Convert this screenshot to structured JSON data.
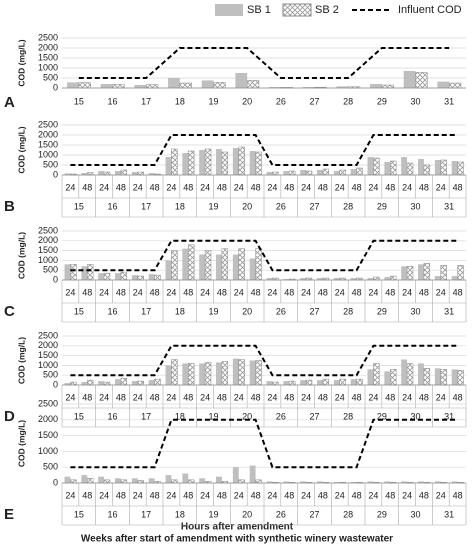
{
  "chart_data": [
    {
      "type": "bar",
      "label": "A",
      "y_label": "COD (mg/L)",
      "categories": [
        "15",
        "16",
        "17",
        "18",
        "19",
        "20",
        "26",
        "27",
        "28",
        "29",
        "30",
        "31"
      ],
      "series": [
        {
          "name": "SB 1",
          "color": "#bfbfbf",
          "hatch": false,
          "values": [
            280,
            200,
            150,
            500,
            380,
            750,
            50,
            50,
            80,
            200,
            850,
            320
          ]
        },
        {
          "name": "SB 2",
          "color": "#bfbfbf",
          "hatch": true,
          "values": [
            270,
            180,
            170,
            250,
            280,
            380,
            30,
            40,
            60,
            150,
            780,
            250
          ]
        },
        {
          "name": "Influent COD",
          "type": "line",
          "dashed": true,
          "color": "#000000",
          "values": [
            500,
            500,
            500,
            2000,
            2000,
            2000,
            500,
            500,
            500,
            2000,
            2000,
            2000
          ]
        }
      ],
      "ylim": [
        0,
        2500
      ],
      "yticks": [
        0,
        500,
        1000,
        1500,
        2000,
        2500
      ],
      "grid": true
    },
    {
      "type": "bar",
      "label": "B",
      "y_label": "COD (mg/L)",
      "categories": [
        "24",
        "48",
        "24",
        "48",
        "24",
        "48",
        "24",
        "48",
        "24",
        "48",
        "24",
        "48",
        "24",
        "48",
        "24",
        "48",
        "24",
        "48",
        "24",
        "48",
        "24",
        "48",
        "24",
        "48"
      ],
      "groups": [
        "15",
        "16",
        "17",
        "18",
        "19",
        "20",
        "26",
        "27",
        "28",
        "29",
        "30",
        "31"
      ],
      "series": [
        {
          "color": "#bfbfbf",
          "hatch": false,
          "values": [
            80,
            100,
            200,
            200,
            150,
            100,
            900,
            1100,
            1250,
            1300,
            1350,
            1200,
            150,
            200,
            250,
            250,
            200,
            300,
            900,
            650,
            900,
            800,
            750,
            700
          ]
        },
        {
          "color": "#bfbfbf",
          "hatch": true,
          "values": [
            50,
            120,
            150,
            250,
            150,
            50,
            1300,
            1200,
            1300,
            1150,
            1400,
            1150,
            150,
            200,
            200,
            300,
            250,
            350,
            850,
            700,
            600,
            500,
            750,
            650
          ]
        },
        {
          "type": "line",
          "dashed": true,
          "color": "#000000",
          "values": [
            500,
            500,
            500,
            500,
            500,
            500,
            2000,
            2000,
            2000,
            2000,
            2000,
            2000,
            500,
            500,
            500,
            500,
            500,
            500,
            2000,
            2000,
            2000,
            2000,
            2000,
            2000
          ]
        }
      ],
      "ylim": [
        0,
        2500
      ],
      "yticks": [
        0,
        500,
        1000,
        1500,
        2000,
        2500
      ],
      "grid": true
    },
    {
      "type": "bar",
      "label": "C",
      "y_label": "COD (mg/L)",
      "categories": [
        "24",
        "48",
        "24",
        "48",
        "24",
        "48",
        "24",
        "48",
        "24",
        "48",
        "24",
        "48",
        "24",
        "48",
        "24",
        "48",
        "24",
        "48",
        "24",
        "48",
        "24",
        "48",
        "24",
        "48"
      ],
      "groups": [
        "15",
        "16",
        "17",
        "18",
        "19",
        "20",
        "26",
        "27",
        "28",
        "29",
        "30",
        "31"
      ],
      "series": [
        {
          "color": "#bfbfbf",
          "hatch": false,
          "values": [
            800,
            700,
            350,
            350,
            250,
            300,
            1000,
            1600,
            1300,
            1300,
            1300,
            1100,
            100,
            50,
            100,
            100,
            100,
            100,
            100,
            150,
            700,
            800,
            200,
            200
          ]
        },
        {
          "color": "#bfbfbf",
          "hatch": true,
          "values": [
            800,
            800,
            350,
            400,
            200,
            250,
            1500,
            1800,
            1500,
            1600,
            1600,
            1600,
            100,
            50,
            100,
            100,
            100,
            100,
            150,
            200,
            700,
            850,
            750,
            750
          ]
        },
        {
          "type": "line",
          "dashed": true,
          "color": "#000000",
          "values": [
            500,
            500,
            500,
            500,
            500,
            500,
            2000,
            2000,
            2000,
            2000,
            2000,
            2000,
            500,
            500,
            500,
            500,
            500,
            500,
            2000,
            2000,
            2000,
            2000,
            2000,
            2000
          ]
        }
      ],
      "ylim": [
        0,
        2500
      ],
      "yticks": [
        0,
        500,
        1000,
        1500,
        2000,
        2500
      ],
      "grid": true
    },
    {
      "type": "bar",
      "label": "D",
      "y_label": "COD (mg/L)",
      "categories": [
        "24",
        "48",
        "24",
        "48",
        "24",
        "48",
        "24",
        "48",
        "24",
        "48",
        "24",
        "48",
        "24",
        "48",
        "24",
        "48",
        "24",
        "48",
        "24",
        "48",
        "24",
        "48",
        "24",
        "48"
      ],
      "groups": [
        "15",
        "16",
        "17",
        "18",
        "19",
        "20",
        "26",
        "27",
        "28",
        "29",
        "30",
        "31"
      ],
      "series": [
        {
          "color": "#bfbfbf",
          "hatch": false,
          "values": [
            100,
            150,
            200,
            300,
            200,
            250,
            1000,
            1100,
            1100,
            1150,
            1350,
            1250,
            200,
            200,
            250,
            250,
            250,
            300,
            800,
            700,
            1300,
            1100,
            850,
            800
          ]
        },
        {
          "color": "#bfbfbf",
          "hatch": true,
          "values": [
            150,
            250,
            150,
            350,
            200,
            300,
            1300,
            1100,
            1150,
            1200,
            1300,
            1250,
            150,
            200,
            250,
            300,
            300,
            300,
            1100,
            800,
            1100,
            850,
            800,
            750
          ]
        },
        {
          "type": "line",
          "dashed": true,
          "color": "#000000",
          "values": [
            500,
            500,
            500,
            500,
            500,
            500,
            2000,
            2000,
            2000,
            2000,
            2000,
            2000,
            500,
            500,
            500,
            500,
            500,
            500,
            2000,
            2000,
            2000,
            2000,
            2000,
            2000
          ]
        }
      ],
      "ylim": [
        0,
        2500
      ],
      "yticks": [
        0,
        500,
        1000,
        1500,
        2000,
        2500
      ],
      "grid": true
    },
    {
      "type": "bar",
      "label": "E",
      "y_label": "COD (mg/L)",
      "categories": [
        "24",
        "48",
        "24",
        "48",
        "24",
        "48",
        "24",
        "48",
        "24",
        "48",
        "24",
        "48",
        "24",
        "48",
        "24",
        "48",
        "24",
        "48",
        "24",
        "48",
        "24",
        "48",
        "24",
        "48"
      ],
      "groups": [
        "15",
        "16",
        "17",
        "18",
        "19",
        "20",
        "26",
        "27",
        "28",
        "29",
        "30",
        "31"
      ],
      "series": [
        {
          "color": "#bfbfbf",
          "hatch": false,
          "values": [
            200,
            250,
            200,
            150,
            150,
            150,
            250,
            300,
            150,
            200,
            500,
            550,
            50,
            50,
            50,
            50,
            30,
            30,
            50,
            50,
            50,
            50,
            50,
            50
          ]
        },
        {
          "color": "#bfbfbf",
          "hatch": true,
          "values": [
            100,
            150,
            100,
            100,
            80,
            50,
            100,
            100,
            50,
            50,
            100,
            100,
            20,
            20,
            20,
            20,
            20,
            20,
            20,
            20,
            20,
            20,
            20,
            20
          ]
        },
        {
          "type": "line",
          "dashed": true,
          "color": "#000000",
          "values": [
            500,
            500,
            500,
            500,
            500,
            500,
            2000,
            2000,
            2000,
            2000,
            2000,
            2000,
            500,
            500,
            500,
            500,
            500,
            500,
            2000,
            2000,
            2000,
            2000,
            2000,
            2000
          ]
        }
      ],
      "ylim": [
        0,
        2500
      ],
      "yticks": [
        0,
        500,
        1000,
        1500,
        2000,
        2500
      ],
      "grid": true
    }
  ],
  "footer": {
    "hours_label": "Hours after amendment",
    "weeks_label": "Weeks after start of amendment with synthetic winery wastewater"
  }
}
